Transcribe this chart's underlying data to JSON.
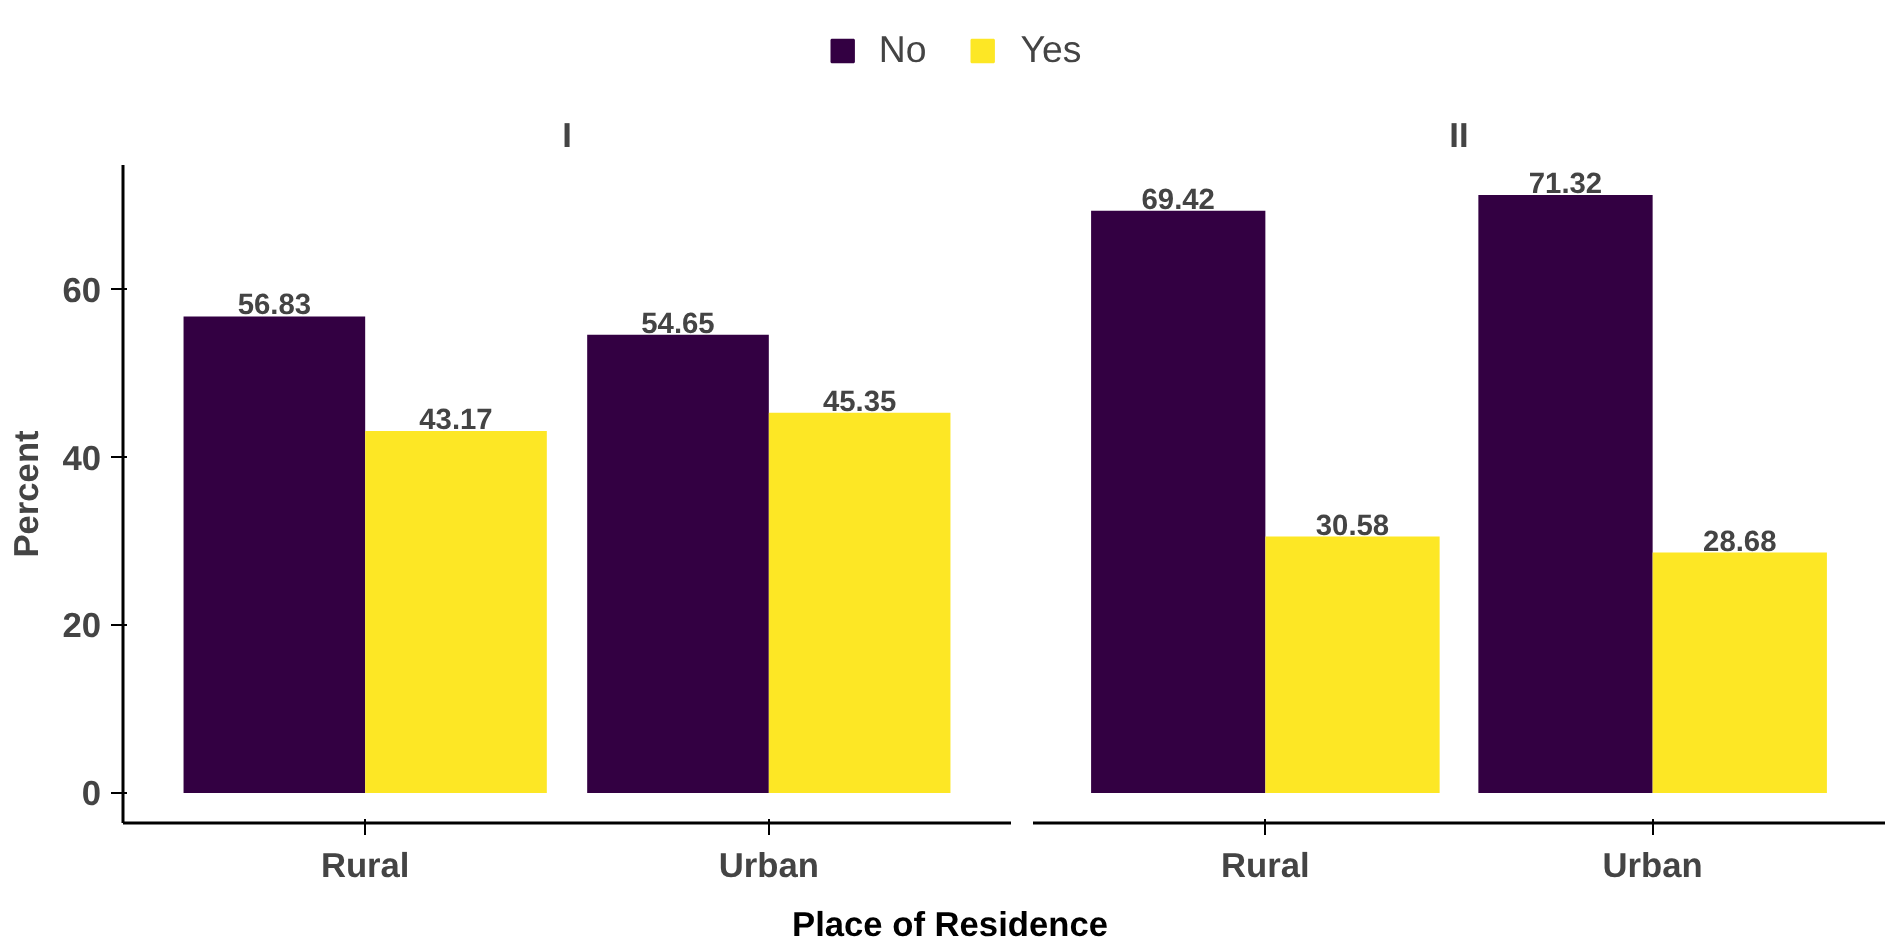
{
  "chart_data": [
    {
      "type": "bar",
      "title": "I",
      "xlabel": "Place of Residence",
      "ylabel": "Percent",
      "categories": [
        "Rural",
        "Urban"
      ],
      "series": [
        {
          "name": "No",
          "color": "#330042",
          "values": [
            56.83,
            54.65
          ]
        },
        {
          "name": "Yes",
          "color": "#fde725",
          "values": [
            43.17,
            45.35
          ]
        }
      ],
      "ylim": [
        -3.57,
        74.89
      ],
      "yticks": [
        0,
        20,
        40,
        60
      ],
      "data_labels": true,
      "legend": "top",
      "grid": false
    },
    {
      "type": "bar",
      "title": "II",
      "categories": [
        "Rural",
        "Urban"
      ],
      "series": [
        {
          "color": "#330042",
          "values": [
            69.42,
            71.32
          ]
        },
        {
          "color": "#fde725",
          "values": [
            30.58,
            28.68
          ]
        }
      ],
      "data_labels": true,
      "tick_labels": "x",
      "grid": false
    }
  ]
}
